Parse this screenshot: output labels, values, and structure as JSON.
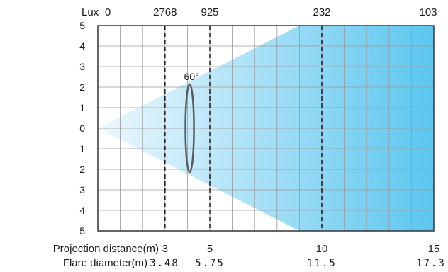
{
  "diagram": {
    "lux_label": "Lux",
    "lux_values": [
      {
        "text": "0",
        "distance": 0
      },
      {
        "text": "2768",
        "distance": 3
      },
      {
        "text": "925",
        "distance": 5
      },
      {
        "text": "232",
        "distance": 10
      },
      {
        "text": "103",
        "distance": 15
      }
    ],
    "y_ticks": [
      "5",
      "4",
      "3",
      "2",
      "1",
      "0",
      "1",
      "2",
      "3",
      "4",
      "5"
    ],
    "beam_angle": "60°",
    "projection_label": "Projection distance(m)",
    "projection_values": [
      {
        "text": "3",
        "distance": 3
      },
      {
        "text": "5",
        "distance": 5
      },
      {
        "text": "10",
        "distance": 10
      },
      {
        "text": "15",
        "distance": 15
      }
    ],
    "flare_label": "Flare diameter(m)",
    "flare_values": [
      {
        "text": "3.48",
        "distance": 3
      },
      {
        "text": "5.75",
        "distance": 5
      },
      {
        "text": "11.5",
        "distance": 10
      },
      {
        "text": "17.3",
        "distance": 15
      }
    ],
    "dashed_distances": [
      3,
      5,
      10
    ],
    "beam_color_start": "#eef8fd",
    "beam_color_end": "#5bc6ef",
    "grid_color": "#9a9a9a",
    "ellipse_color": "#5a5a5a"
  }
}
